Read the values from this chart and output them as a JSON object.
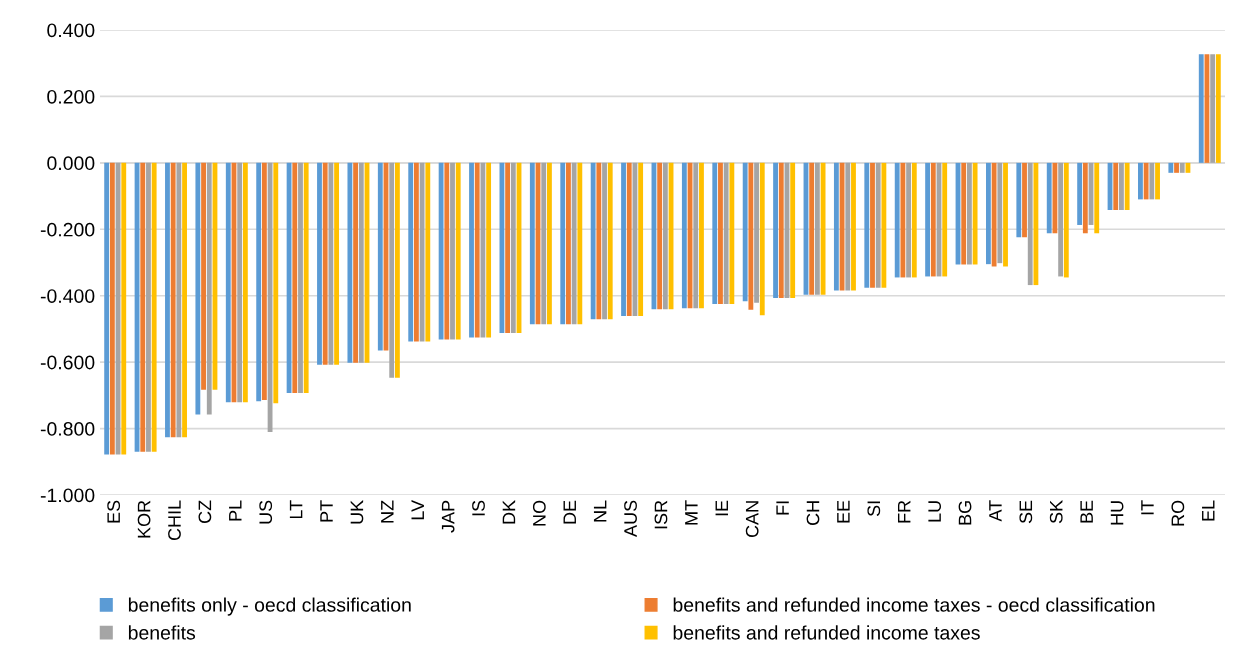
{
  "chart_data": {
    "type": "bar",
    "categories": [
      "ES",
      "KOR",
      "CHIL",
      "CZ",
      "PL",
      "US",
      "LT",
      "PT",
      "UK",
      "NZ",
      "LV",
      "JAP",
      "IS",
      "DK",
      "NO",
      "DE",
      "NL",
      "AUS",
      "ISR",
      "MT",
      "IE",
      "CAN",
      "FI",
      "CH",
      "EE",
      "SI",
      "FR",
      "LU",
      "BG",
      "AT",
      "SE",
      "SK",
      "BE",
      "HU",
      "IT",
      "RO",
      "EL"
    ],
    "series": [
      {
        "name": "benefits only - oecd classification",
        "color": "#5b9bd5",
        "values": [
          -0.878,
          -0.87,
          -0.826,
          -0.758,
          -0.721,
          -0.718,
          -0.693,
          -0.608,
          -0.602,
          -0.565,
          -0.538,
          -0.532,
          -0.526,
          -0.512,
          -0.486,
          -0.486,
          -0.471,
          -0.461,
          -0.441,
          -0.438,
          -0.425,
          -0.417,
          -0.407,
          -0.397,
          -0.384,
          -0.376,
          -0.345,
          -0.342,
          -0.306,
          -0.305,
          -0.224,
          -0.212,
          -0.187,
          -0.142,
          -0.11,
          -0.03,
          0.327
        ]
      },
      {
        "name": "benefits and refunded income taxes - oecd classification",
        "color": "#ed7d31",
        "values": [
          -0.878,
          -0.87,
          -0.826,
          -0.683,
          -0.721,
          -0.714,
          -0.693,
          -0.608,
          -0.602,
          -0.565,
          -0.538,
          -0.532,
          -0.526,
          -0.512,
          -0.486,
          -0.486,
          -0.471,
          -0.461,
          -0.441,
          -0.438,
          -0.425,
          -0.442,
          -0.407,
          -0.397,
          -0.384,
          -0.376,
          -0.345,
          -0.342,
          -0.306,
          -0.312,
          -0.224,
          -0.212,
          -0.212,
          -0.142,
          -0.11,
          -0.03,
          0.327
        ]
      },
      {
        "name": "benefits",
        "color": "#a5a5a5",
        "values": [
          -0.878,
          -0.87,
          -0.826,
          -0.758,
          -0.721,
          -0.81,
          -0.693,
          -0.608,
          -0.602,
          -0.647,
          -0.538,
          -0.532,
          -0.526,
          -0.512,
          -0.486,
          -0.486,
          -0.471,
          -0.461,
          -0.441,
          -0.438,
          -0.425,
          -0.421,
          -0.407,
          -0.397,
          -0.384,
          -0.376,
          -0.345,
          -0.342,
          -0.306,
          -0.302,
          -0.368,
          -0.342,
          -0.187,
          -0.142,
          -0.11,
          -0.03,
          0.327
        ]
      },
      {
        "name": "benefits and refunded income taxes",
        "color": "#ffc000",
        "values": [
          -0.878,
          -0.87,
          -0.826,
          -0.683,
          -0.721,
          -0.724,
          -0.693,
          -0.608,
          -0.602,
          -0.647,
          -0.538,
          -0.532,
          -0.526,
          -0.512,
          -0.486,
          -0.486,
          -0.471,
          -0.461,
          -0.441,
          -0.438,
          -0.425,
          -0.459,
          -0.407,
          -0.397,
          -0.384,
          -0.376,
          -0.345,
          -0.342,
          -0.306,
          -0.312,
          -0.368,
          -0.345,
          -0.212,
          -0.142,
          -0.11,
          -0.03,
          0.327
        ]
      }
    ],
    "ylim": [
      -1.0,
      0.4
    ],
    "yticks": [
      {
        "value": -1.0,
        "label": "-1.000"
      },
      {
        "value": -0.8,
        "label": "-0.800"
      },
      {
        "value": -0.6,
        "label": "-0.600"
      },
      {
        "value": -0.4,
        "label": "-0.400"
      },
      {
        "value": -0.2,
        "label": "-0.200"
      },
      {
        "value": 0,
        "label": "0.000"
      },
      {
        "value": 0.2,
        "label": "0.200"
      },
      {
        "value": 0.4,
        "label": "0.400"
      }
    ],
    "grid": "y",
    "legend": "bottom"
  }
}
